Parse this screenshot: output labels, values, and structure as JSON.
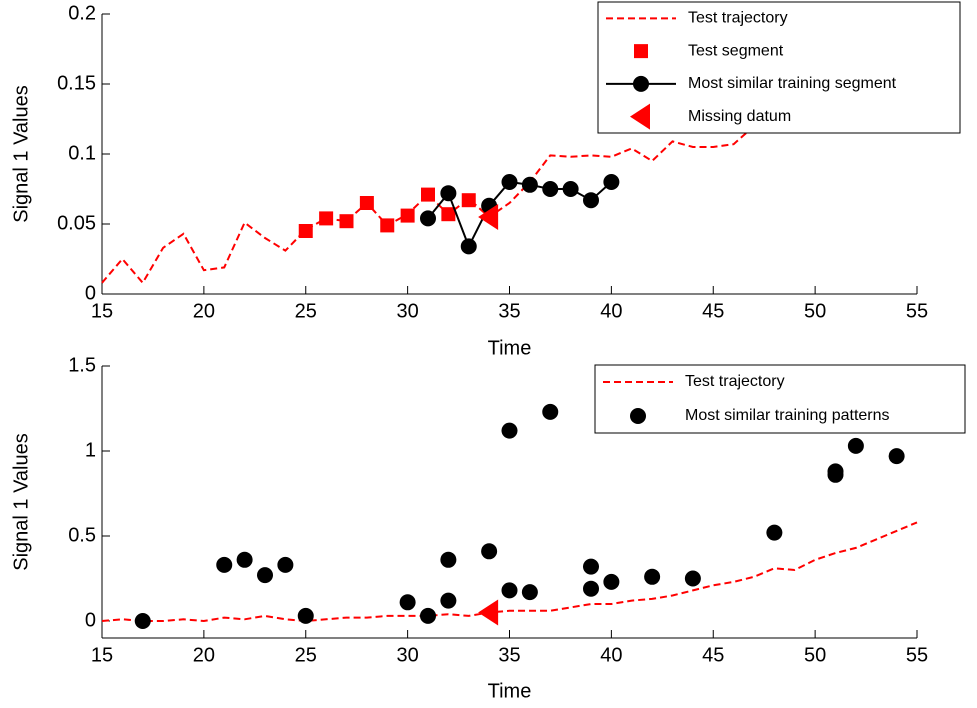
{
  "chart_data": [
    {
      "type": "line",
      "xlabel": "Time",
      "ylabel": "Signal 1 Values",
      "xlim": [
        15,
        55
      ],
      "xticks": [
        15,
        20,
        25,
        30,
        35,
        40,
        45,
        50,
        55
      ],
      "ylim": [
        0,
        0.2
      ],
      "yticks": [
        0,
        0.05,
        0.1,
        0.15,
        0.2
      ],
      "legend": "upper right",
      "series": [
        {
          "name": "Test trajectory",
          "color": "#ff0000",
          "style": "dashed-line",
          "x": [
            15,
            16,
            17,
            18,
            19,
            20,
            21,
            22,
            23,
            24,
            25,
            26,
            27,
            28,
            29,
            30,
            31,
            32,
            33,
            34,
            35,
            36,
            37,
            38,
            39,
            40,
            41,
            42,
            43,
            44,
            45,
            46,
            47,
            48
          ],
          "values": [
            0.008,
            0.025,
            0.008,
            0.033,
            0.043,
            0.017,
            0.019,
            0.051,
            0.04,
            0.031,
            0.046,
            0.054,
            0.052,
            0.065,
            0.049,
            0.057,
            0.071,
            0.057,
            0.068,
            0.055,
            0.065,
            0.08,
            0.099,
            0.098,
            0.099,
            0.098,
            0.104,
            0.095,
            0.109,
            0.105,
            0.105,
            0.107,
            0.12,
            0.125
          ]
        },
        {
          "name": "Test segment",
          "color": "#ff0000",
          "style": "square",
          "x": [
            25,
            26,
            27,
            28,
            29,
            30,
            31,
            32,
            33
          ],
          "values": [
            0.045,
            0.054,
            0.052,
            0.065,
            0.049,
            0.056,
            0.071,
            0.057,
            0.067
          ]
        },
        {
          "name": "Most similar training segment",
          "color": "#000000",
          "style": "line-circle",
          "x": [
            31,
            32,
            33,
            34,
            35,
            36,
            37,
            38,
            39,
            40
          ],
          "values": [
            0.054,
            0.072,
            0.034,
            0.063,
            0.08,
            0.078,
            0.075,
            0.075,
            0.067,
            0.08
          ]
        },
        {
          "name": "Missing datum",
          "color": "#ff0000",
          "style": "triangle",
          "x": [
            34
          ],
          "values": [
            0.055
          ]
        }
      ]
    },
    {
      "type": "line",
      "xlabel": "Time",
      "ylabel": "Signal 1 Values",
      "xlim": [
        15,
        55
      ],
      "xticks": [
        15,
        20,
        25,
        30,
        35,
        40,
        45,
        50,
        55
      ],
      "ylim": [
        -0.1,
        1.5
      ],
      "yticks": [
        0,
        0.5,
        1,
        1.5
      ],
      "legend": "upper right",
      "series": [
        {
          "name": "Test trajectory",
          "color": "#ff0000",
          "style": "dashed-line",
          "x": [
            15,
            16,
            17,
            18,
            19,
            20,
            21,
            22,
            23,
            24,
            25,
            26,
            27,
            28,
            29,
            30,
            31,
            32,
            33,
            34,
            35,
            36,
            37,
            38,
            39,
            40,
            41,
            42,
            43,
            44,
            45,
            46,
            47,
            48,
            49,
            50,
            51,
            52,
            53,
            54,
            55
          ],
          "values": [
            0,
            0.01,
            0,
            0,
            0.01,
            0,
            0.02,
            0.01,
            0.03,
            0.01,
            0,
            0.01,
            0.02,
            0.02,
            0.03,
            0.03,
            0.03,
            0.04,
            0.03,
            0.05,
            0.06,
            0.06,
            0.06,
            0.08,
            0.1,
            0.1,
            0.12,
            0.13,
            0.15,
            0.18,
            0.21,
            0.23,
            0.26,
            0.31,
            0.3,
            0.36,
            0.4,
            0.43,
            0.48,
            0.53,
            0.58
          ]
        },
        {
          "name": "Most similar training patterns",
          "color": "#000000",
          "style": "circle",
          "x": [
            17,
            21,
            22,
            23,
            24,
            25,
            30,
            31,
            32,
            32,
            34,
            35,
            35,
            36,
            37,
            39,
            39,
            40,
            42,
            44,
            48,
            51,
            51,
            52,
            54
          ],
          "values": [
            0,
            0.33,
            0.36,
            0.27,
            0.33,
            0.03,
            0.11,
            0.03,
            0.12,
            0.36,
            0.41,
            1.12,
            0.18,
            0.17,
            1.23,
            0.32,
            0.19,
            0.23,
            0.26,
            0.25,
            0.52,
            0.86,
            0.88,
            1.03,
            0.97
          ]
        },
        {
          "color": "#ff0000",
          "style": "triangle",
          "x": [
            34
          ],
          "values": [
            0.05
          ]
        }
      ]
    }
  ]
}
